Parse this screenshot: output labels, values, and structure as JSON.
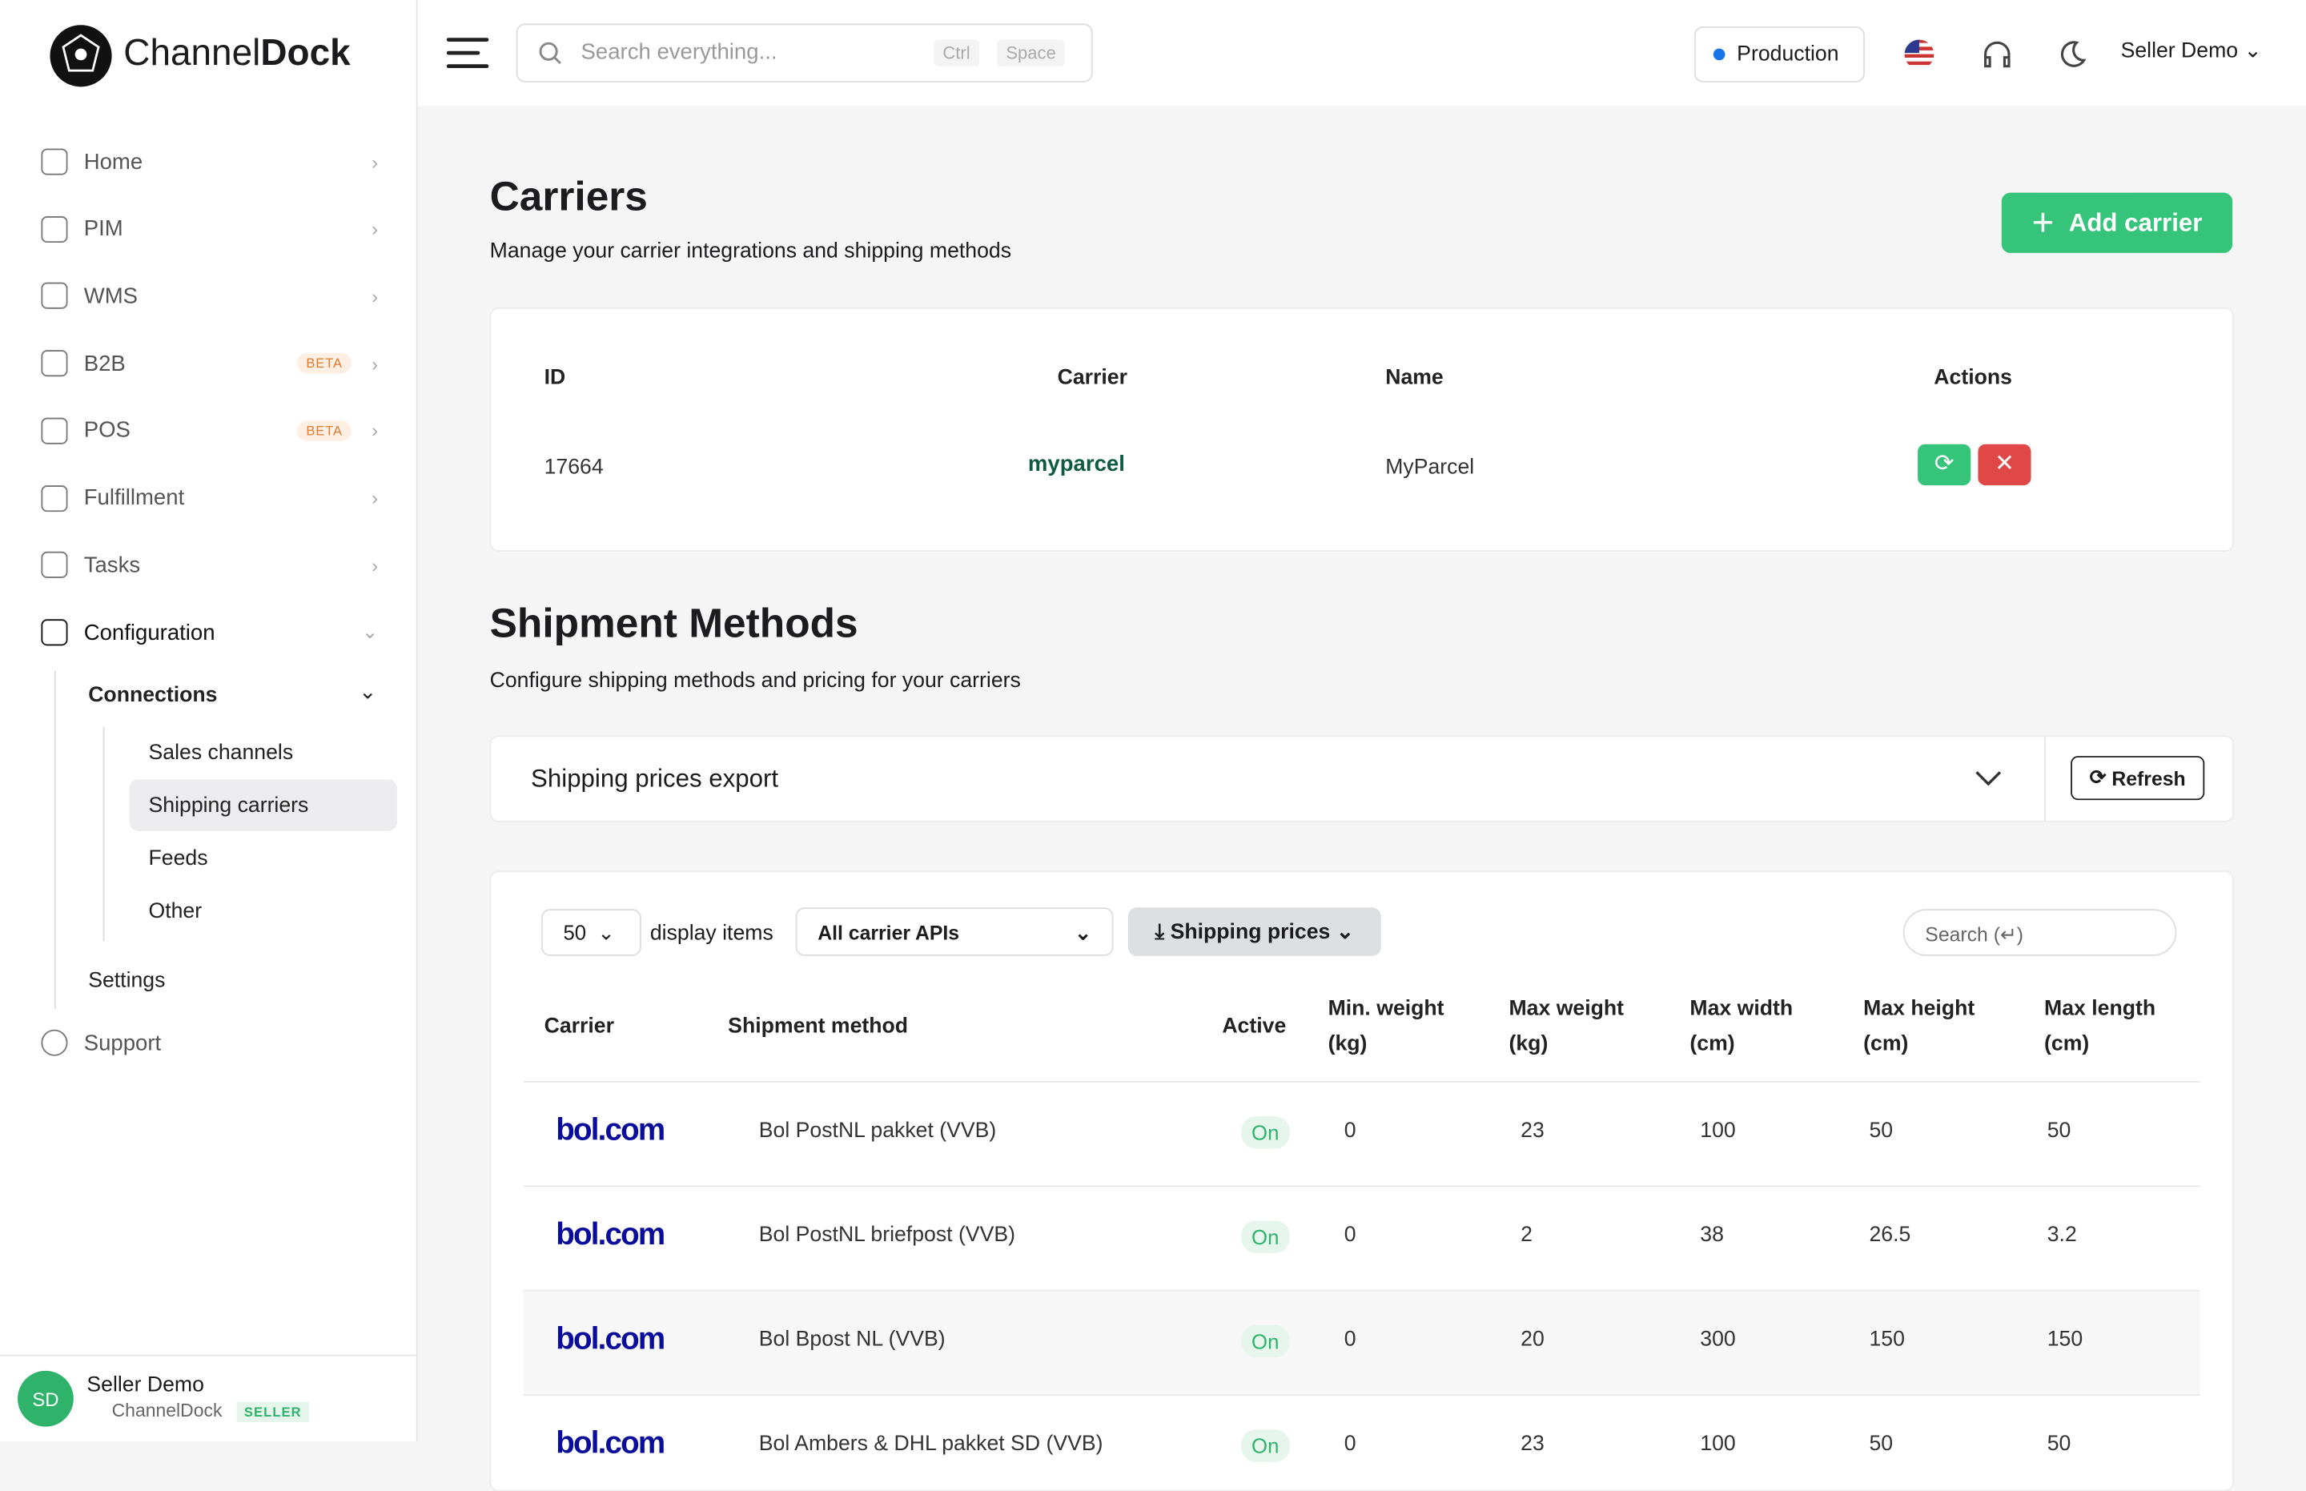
{
  "brand": {
    "name_part1": "Channel",
    "name_part2": "Dock"
  },
  "topbar": {
    "search_placeholder": "Search everything...",
    "shortcut_keys": [
      "Ctrl",
      "Space"
    ],
    "environment": "Production",
    "user_menu": "Seller Demo"
  },
  "sidebar": {
    "items": [
      {
        "label": "Home"
      },
      {
        "label": "PIM"
      },
      {
        "label": "WMS"
      },
      {
        "label": "B2B",
        "badge": "BETA"
      },
      {
        "label": "POS",
        "badge": "BETA"
      },
      {
        "label": "Fulfillment"
      },
      {
        "label": "Tasks"
      }
    ],
    "configuration": {
      "label": "Configuration",
      "connections": {
        "label": "Connections",
        "items": [
          "Sales channels",
          "Shipping carriers",
          "Feeds",
          "Other"
        ]
      },
      "settings": "Settings"
    },
    "support": "Support",
    "user": {
      "initials": "SD",
      "name": "Seller Demo",
      "company": "ChannelDock",
      "role": "SELLER"
    }
  },
  "carriers": {
    "title": "Carriers",
    "subtitle": "Manage your carrier integrations and shipping methods",
    "add_button": "Add carrier",
    "table": {
      "headers": [
        "ID",
        "Carrier",
        "Name",
        "Actions"
      ],
      "rows": [
        {
          "id": "17664",
          "carrier_logo": "myparcel",
          "name": "MyParcel"
        }
      ]
    }
  },
  "shipment_methods": {
    "title": "Shipment Methods",
    "subtitle": "Configure shipping methods and pricing for your carriers",
    "export": {
      "label": "Shipping prices export",
      "refresh": "Refresh"
    },
    "toolbar": {
      "page_size": "50",
      "display_items": "display items",
      "carrier_filter": "All carrier APIs",
      "prices_button": "Shipping prices",
      "search_placeholder": "Search (↵)"
    },
    "table": {
      "headers": [
        "Carrier",
        "Shipment method",
        "Active",
        "Min. weight (kg)",
        "Max weight (kg)",
        "Max width (cm)",
        "Max height (cm)",
        "Max length (cm)"
      ],
      "rows": [
        {
          "carrier_logo": "bol.com",
          "method": "Bol PostNL pakket (VVB)",
          "active": "On",
          "values": [
            "0",
            "23",
            "100",
            "50",
            "50"
          ]
        },
        {
          "carrier_logo": "bol.com",
          "method": "Bol PostNL briefpost (VVB)",
          "active": "On",
          "values": [
            "0",
            "2",
            "38",
            "26.5",
            "3.2"
          ]
        },
        {
          "carrier_logo": "bol.com",
          "method": "Bol Bpost NL (VVB)",
          "active": "On",
          "values": [
            "0",
            "20",
            "300",
            "150",
            "150"
          ]
        },
        {
          "carrier_logo": "bol.com",
          "method": "Bol Ambers & DHL pakket SD (VVB)",
          "active": "On",
          "values": [
            "0",
            "23",
            "100",
            "50",
            "50"
          ]
        }
      ]
    }
  }
}
